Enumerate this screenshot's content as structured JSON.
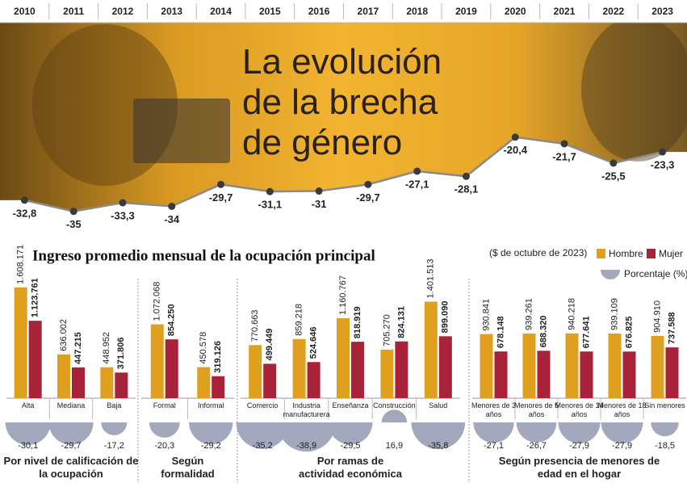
{
  "chart_data": [
    {
      "type": "line",
      "title": "La evolución de la brecha de género",
      "x": [
        2010,
        2011,
        2012,
        2013,
        2014,
        2015,
        2016,
        2017,
        2018,
        2019,
        2020,
        2021,
        2022,
        2023
      ],
      "values": [
        -32.8,
        -35,
        -33.3,
        -34,
        -29.7,
        -31.1,
        -31,
        -29.7,
        -27.1,
        -28.1,
        -20.4,
        -21.7,
        -25.5,
        -23.3
      ],
      "value_labels": [
        "-32,8",
        "-35",
        "-33,3",
        "-34",
        "-29,7",
        "-31,1",
        "-31",
        "-29,7",
        "-27,1",
        "-28,1",
        "-20,4",
        "-21,7",
        "-25,5",
        "-23,3"
      ],
      "color": "#3a3a3a",
      "ylim": [
        -36,
        -19
      ]
    },
    {
      "type": "grouped_bar",
      "title": "Ingreso promedio mensual de la ocupación principal",
      "subtitle": "($ de octubre de 2023)",
      "groups": [
        {
          "label": "Por nivel de calificación de la ocupación",
          "categories": [
            "Alta",
            "Mediana",
            "Baja"
          ]
        },
        {
          "label": "Según formalidad",
          "categories": [
            "Formal",
            "Informal"
          ]
        },
        {
          "label": "Por ramas de actividad económica",
          "categories": [
            "Comercio",
            "Industria manufacturera",
            "Enseñanza",
            "Construcción",
            "Salud"
          ]
        },
        {
          "label": "Según presencia de menores de edad en el hogar",
          "categories": [
            "Menores de 3 años",
            "Menores de 5 años",
            "Menores de 14 años",
            "Menores de 18 años",
            "Sin menores"
          ]
        }
      ],
      "series": [
        {
          "name": "Hombre",
          "color": "#dfa020",
          "values": [
            1608171,
            636002,
            448952,
            1072068,
            450578,
            770663,
            859218,
            1160767,
            705270,
            1401513,
            930841,
            939261,
            940218,
            939109,
            904910
          ],
          "value_labels": [
            "1.608.171",
            "636.002",
            "448.952",
            "1.072.068",
            "450.578",
            "770.663",
            "859.218",
            "1.160.767",
            "705.270",
            "1.401.513",
            "930.841",
            "939.261",
            "940.218",
            "939.109",
            "904.910"
          ]
        },
        {
          "name": "Mujer",
          "color": "#a8233a",
          "values": [
            1123761,
            447215,
            371806,
            854250,
            319126,
            499449,
            524646,
            818919,
            824131,
            899090,
            678148,
            688320,
            677641,
            676825,
            737588
          ],
          "value_labels": [
            "1.123.761",
            "447.215",
            "371.806",
            "854.250",
            "319.126",
            "499.449",
            "524.646",
            "818.919",
            "824.131",
            "899.090",
            "678.148",
            "688.320",
            "677.641",
            "676.825",
            "737.588"
          ]
        }
      ],
      "percent": {
        "name": "Porcentaje (%)",
        "color": "#a3a8bd",
        "values": [
          -30.1,
          -29.7,
          -17.2,
          -20.3,
          -29.2,
          -35.2,
          -38.9,
          -29.5,
          16.9,
          -35.8,
          -27.1,
          -26.7,
          -27.9,
          -27.9,
          -18.5
        ],
        "value_labels": [
          "-30,1",
          "-29,7",
          "-17,2",
          "-20,3",
          "-29,2",
          "-35,2",
          "-38,9",
          "-29,5",
          "16,9",
          "-35,8",
          "-27,1",
          "-26,7",
          "-27,9",
          "-27,9",
          "-18,5"
        ]
      },
      "ylim": [
        0,
        1700000
      ]
    }
  ]
}
